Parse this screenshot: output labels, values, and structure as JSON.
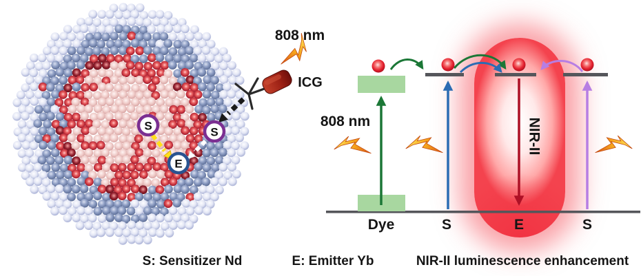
{
  "left_panel": {
    "laser_wavelength": "808 nm",
    "dye_name": "ICG",
    "badge_sensitizer": "S",
    "badge_emitter": "E"
  },
  "right_panel": {
    "excitation_wavelength": "808 nm",
    "emission_band": "NIR-II",
    "level_labels": [
      "Dye",
      "S",
      "E",
      "S"
    ]
  },
  "legend": {
    "sensitizer": "S: Sensitizer Nd",
    "emitter": "E: Emitter Yb",
    "mechanism": "NIR-II luminescence enhancement"
  },
  "colors": {
    "nir_glow_red": "#f5404a",
    "sensitizer_ring_purple": "#7b2f92",
    "emitter_ring_blue": "#2a5390",
    "dye_band_green": "#a8d7a0",
    "dye_excitation_arrow_green": "#1b7736",
    "sensitizer_excitation_arrow_blue": "#2b6cb3",
    "sensitizer_excitation_arrow_purple": "#b77ee3",
    "nir_emission_arrow_red": "#ae1126",
    "energy_level_gray": "#55565b",
    "laser_bolt_orange": "#f59a1b",
    "icg_device_red": "#8f1c12"
  }
}
